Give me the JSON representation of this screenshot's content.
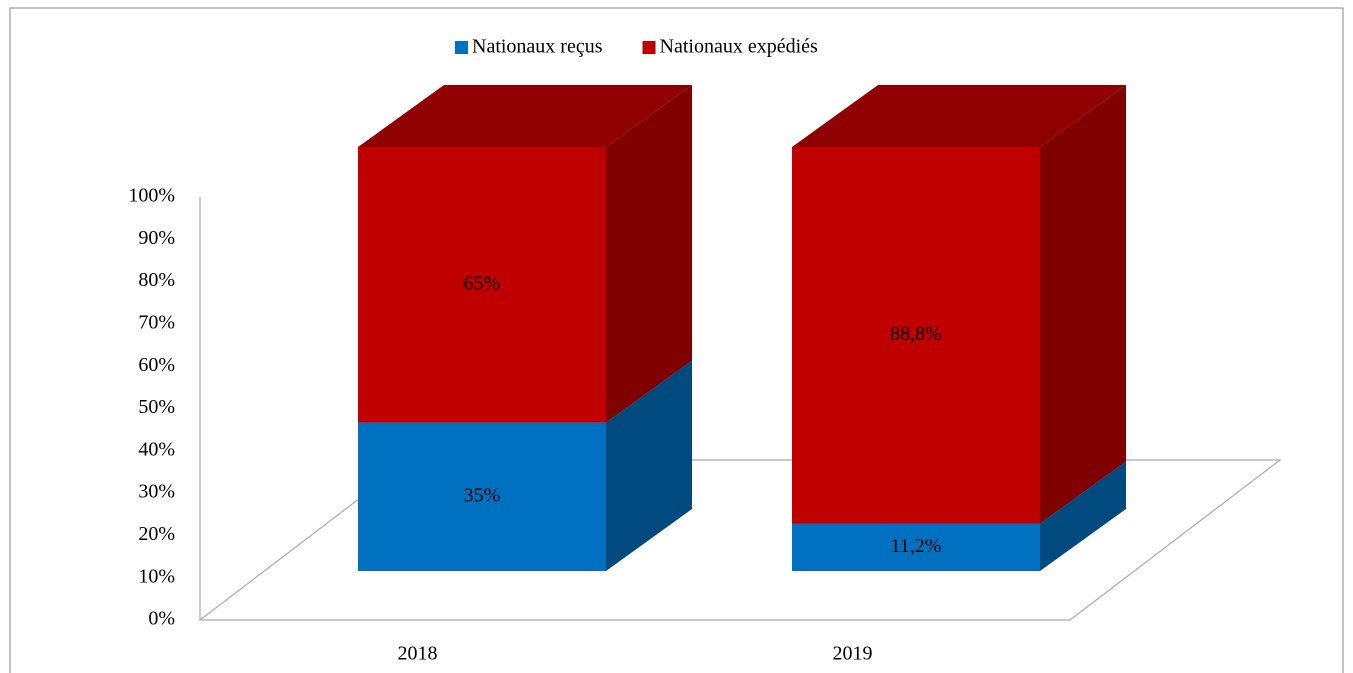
{
  "chart_data": {
    "type": "bar3d-stacked",
    "categories": [
      "2018",
      "2019"
    ],
    "series": [
      {
        "name": "Nationaux reçus",
        "color": "#0070c0",
        "side_color": "#004a7f",
        "values": [
          35,
          11.2
        ],
        "value_labels": [
          "35%",
          "11,2%"
        ]
      },
      {
        "name": "Nationaux expédiés",
        "color": "#c00000",
        "side_color": "#800000",
        "top_color": "#900000",
        "values": [
          65,
          88.8
        ],
        "value_labels": [
          "65%",
          "88,8%"
        ]
      }
    ],
    "ylim": [
      0,
      100
    ],
    "yticks": [
      {
        "value": 0,
        "label": "0%"
      },
      {
        "value": 10,
        "label": "10%"
      },
      {
        "value": 20,
        "label": "20%"
      },
      {
        "value": 30,
        "label": "30%"
      },
      {
        "value": 40,
        "label": "40%"
      },
      {
        "value": 50,
        "label": "50%"
      },
      {
        "value": 60,
        "label": "60%"
      },
      {
        "value": 70,
        "label": "70%"
      },
      {
        "value": 80,
        "label": "80%"
      },
      {
        "value": 90,
        "label": "90%"
      },
      {
        "value": 100,
        "label": "100%"
      }
    ],
    "legend": "top",
    "grid": false
  }
}
